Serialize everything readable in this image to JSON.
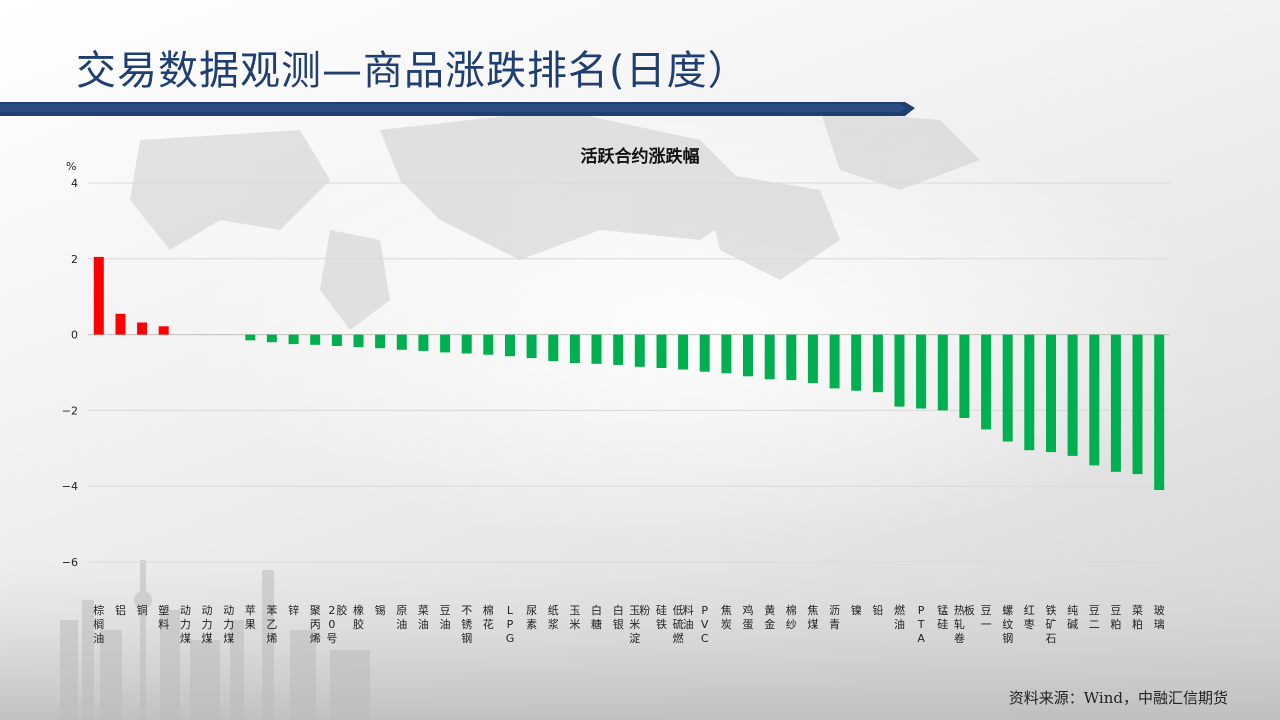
{
  "page": {
    "title": "交易数据观测—商品涨跌排名(日度）",
    "source": "资料来源：Wind，中融汇信期货"
  },
  "colors": {
    "up": "#ff0000",
    "down": "#00b050",
    "title": "#1f3f73",
    "banner": "#1f3f73"
  },
  "chart_data": {
    "type": "bar",
    "title": "活跃合约涨跌幅",
    "ylabel": "%",
    "ylim": [
      -6,
      4
    ],
    "yticks": [
      4,
      2,
      0,
      -2,
      -4,
      -6
    ],
    "grid": true,
    "categories": [
      "棕榈油",
      "铝",
      "铜",
      "塑料",
      "动力煤",
      "动力煤",
      "动力煤",
      "苹果",
      "苯乙烯",
      "锌",
      "聚丙烯",
      "20号胶",
      "橡胶",
      "锡",
      "原油",
      "菜油",
      "豆油",
      "不锈钢",
      "棉花",
      "LPG",
      "尿素",
      "纸浆",
      "玉米",
      "白糖",
      "白银",
      "玉米淀粉",
      "硅铁",
      "低硫燃料油",
      "PVC",
      "焦炭",
      "鸡蛋",
      "黄金",
      "棉纱",
      "焦煤",
      "沥青",
      "镍",
      "铅",
      "燃油",
      "PTA",
      "锰硅",
      "热轧卷板",
      "豆一",
      "螺纹钢",
      "红枣",
      "铁矿石",
      "纯碱",
      "豆二",
      "豆粕",
      "菜粕",
      "玻璃"
    ],
    "values": [
      2.05,
      0.55,
      0.32,
      0.22,
      0,
      0,
      0,
      -0.15,
      -0.2,
      -0.25,
      -0.27,
      -0.3,
      -0.33,
      -0.36,
      -0.4,
      -0.43,
      -0.47,
      -0.5,
      -0.53,
      -0.57,
      -0.62,
      -0.7,
      -0.75,
      -0.77,
      -0.8,
      -0.85,
      -0.88,
      -0.92,
      -0.98,
      -1.02,
      -1.1,
      -1.18,
      -1.2,
      -1.28,
      -1.42,
      -1.48,
      -1.52,
      -1.9,
      -1.95,
      -2.0,
      -2.2,
      -2.5,
      -2.82,
      -3.05,
      -3.1,
      -3.2,
      -3.45,
      -3.62,
      -3.68,
      -4.1
    ]
  }
}
